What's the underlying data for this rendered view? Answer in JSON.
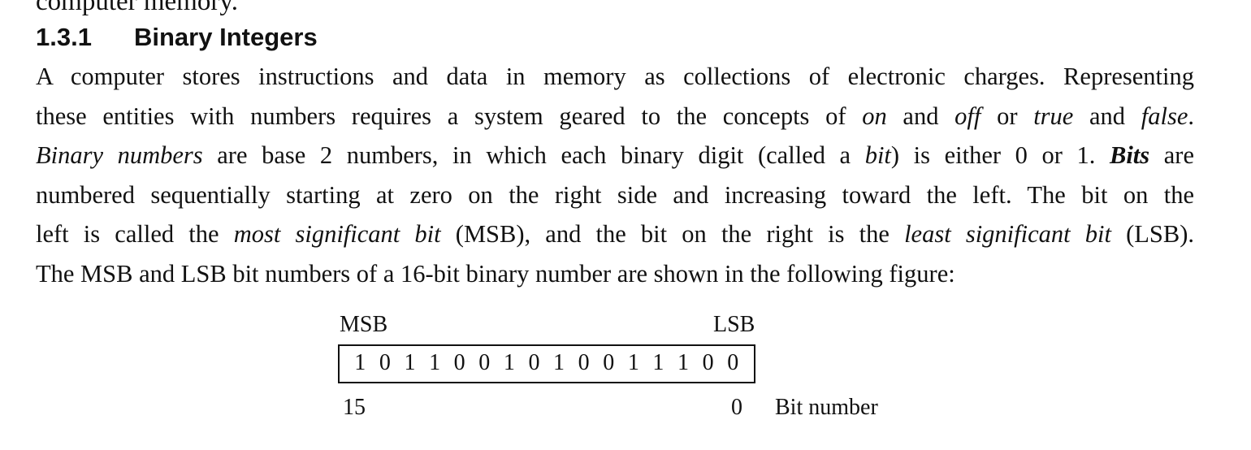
{
  "top_cutoff_text": "computer memory.",
  "section": {
    "number": "1.3.1",
    "title": "Binary Integers"
  },
  "paragraph": {
    "l1": "A computer stores instructions and data in memory as collections of electronic charges. Representing",
    "l2_a": "these entities with numbers requires a system geared to the concepts of ",
    "l2_on": "on",
    "l2_b": " and ",
    "l2_off": "off",
    "l2_c": " or ",
    "l2_true": "true",
    "l2_d": " and ",
    "l2_false": "false",
    "l2_e": ".",
    "l3_binary_numbers": "Binary numbers",
    "l3_a": " are base 2 numbers, in which each binary digit (called a ",
    "l3_bit": "bit",
    "l3_b": ") is either 0 or 1. ",
    "l3_bits": "Bits",
    "l3_c": " are",
    "l4": "numbered sequentially starting at zero on the right side and increasing toward the left. The bit on the",
    "l5_a": "left is called the ",
    "l5_msb": "most significant bit",
    "l5_b": " (MSB), and the bit on the right is the ",
    "l5_lsb": "least significant bit",
    "l5_c": " (LSB).",
    "l6": "The MSB and LSB bit numbers of a 16-bit binary number are shown in the following figure:"
  },
  "figure": {
    "msb_label": "MSB",
    "lsb_label": "LSB",
    "bits": [
      "1",
      "0",
      "1",
      "1",
      "0",
      "0",
      "1",
      "0",
      "1",
      "0",
      "0",
      "1",
      "1",
      "1",
      "0",
      "0"
    ],
    "left_index": "15",
    "right_index": "0",
    "index_caption": "Bit number"
  }
}
